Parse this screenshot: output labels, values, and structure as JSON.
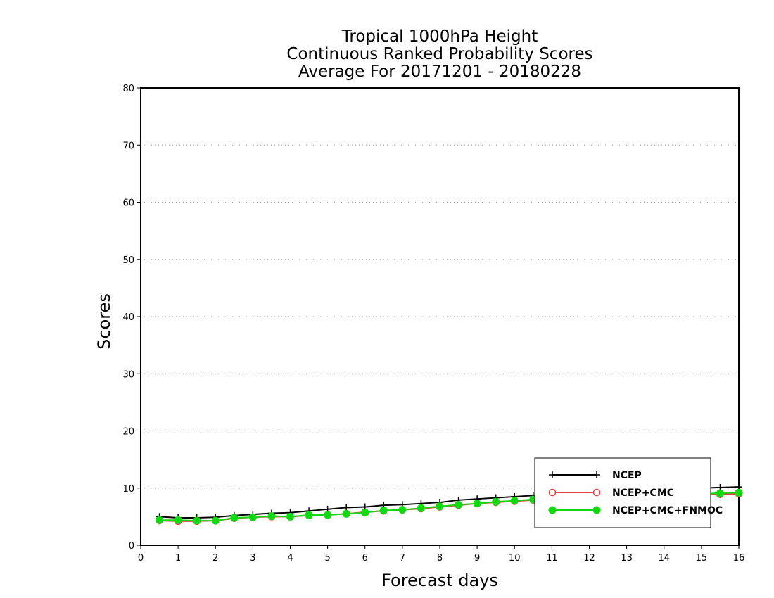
{
  "chart_data": {
    "type": "line",
    "title_lines": [
      "Tropical 1000hPa Height",
      "Continuous Ranked Probability Scores",
      "Average For 20171201 - 20180228"
    ],
    "xlabel": "Forecast days",
    "ylabel": "Scores",
    "xlim": [
      0,
      16
    ],
    "ylim": [
      0,
      80
    ],
    "x_ticks": [
      "0",
      "1",
      "2",
      "3",
      "4",
      "5",
      "6",
      "7",
      "8",
      "9",
      "10",
      "11",
      "12",
      "13",
      "14",
      "15",
      "16"
    ],
    "y_ticks": [
      "0",
      "10",
      "20",
      "30",
      "40",
      "50",
      "60",
      "70",
      "80"
    ],
    "grid": "horizontal dotted",
    "legend_position": "bottom-right",
    "x": [
      0.5,
      1,
      1.5,
      2,
      2.5,
      3,
      3.5,
      4,
      4.5,
      5,
      5.5,
      6,
      6.5,
      7,
      7.5,
      8,
      8.5,
      9,
      9.5,
      10,
      10.5,
      11,
      11.5,
      12,
      12.5,
      13,
      13.5,
      14,
      14.5,
      15,
      15.5,
      16
    ],
    "series": [
      {
        "name": "NCEP",
        "color": "#000000",
        "marker": "plus",
        "values": [
          5.0,
          4.8,
          4.8,
          4.9,
          5.2,
          5.4,
          5.6,
          5.7,
          6.0,
          6.3,
          6.6,
          6.7,
          7.0,
          7.1,
          7.3,
          7.5,
          7.9,
          8.1,
          8.3,
          8.5,
          8.7,
          8.9,
          9.1,
          9.2,
          9.4,
          9.5,
          9.6,
          9.8,
          9.9,
          10.0,
          10.1,
          10.2
        ]
      },
      {
        "name": "NCEP+CMC",
        "color": "#e84040",
        "marker": "open-circle",
        "values": [
          4.3,
          4.2,
          4.2,
          4.3,
          4.7,
          4.9,
          5.0,
          5.0,
          5.2,
          5.3,
          5.5,
          5.8,
          6.0,
          6.2,
          6.4,
          6.7,
          7.0,
          7.3,
          7.5,
          7.7,
          7.9,
          8.0,
          8.2,
          8.3,
          8.4,
          8.5,
          8.6,
          8.7,
          8.8,
          8.9,
          8.9,
          9.0
        ]
      },
      {
        "name": "NCEP+CMC+FNMOC",
        "color": "#11d911",
        "marker": "filled-circle",
        "values": [
          4.4,
          4.4,
          4.3,
          4.3,
          4.8,
          4.9,
          5.1,
          5.0,
          5.3,
          5.3,
          5.5,
          5.7,
          6.1,
          6.2,
          6.5,
          6.8,
          7.1,
          7.3,
          7.6,
          7.8,
          8.0,
          8.1,
          8.3,
          8.4,
          8.5,
          8.6,
          8.7,
          8.8,
          8.9,
          9.0,
          9.1,
          9.2
        ]
      }
    ]
  }
}
